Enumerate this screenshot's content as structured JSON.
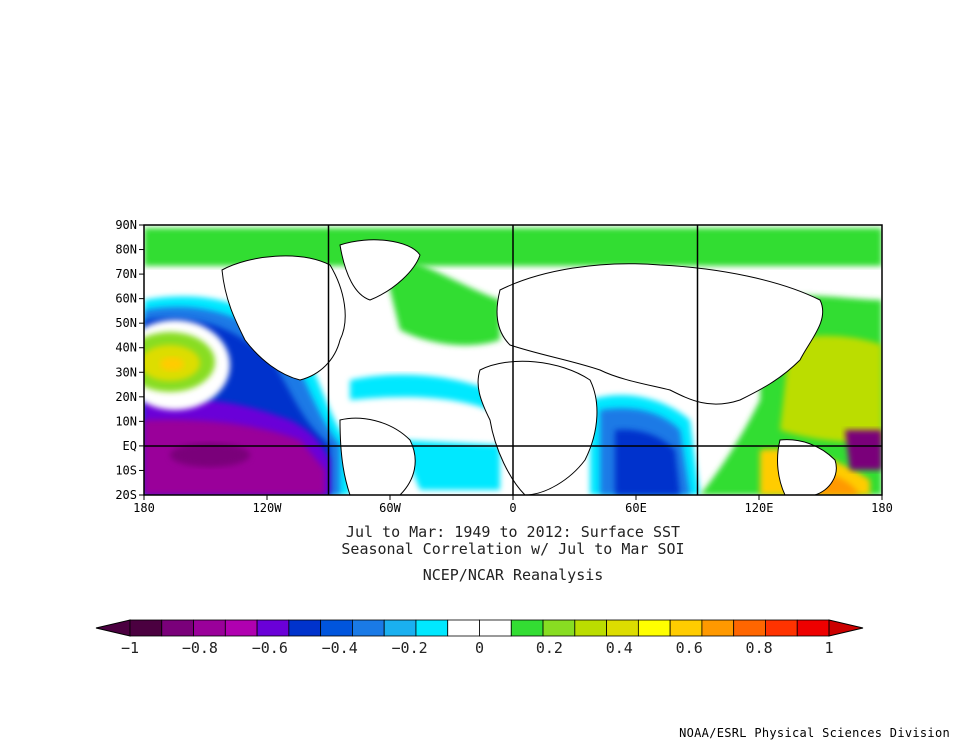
{
  "chart_data": {
    "type": "heatmap",
    "title_line1": "Jul to Mar: 1949 to 2012: Surface SST",
    "title_line2": "Seasonal Correlation w/ Jul to Mar SOI",
    "subtitle": "NCEP/NCAR Reanalysis",
    "lat_ticks": [
      "90N",
      "80N",
      "70N",
      "60N",
      "50N",
      "40N",
      "30N",
      "20N",
      "10N",
      "EQ",
      "10S",
      "20S"
    ],
    "lon_ticks": [
      "180",
      "120W",
      "60W",
      "0",
      "60E",
      "120E",
      "180"
    ],
    "lat_range": [
      -20,
      90
    ],
    "lon_range": [
      -180,
      180
    ],
    "colorbar": {
      "tick_labels": [
        "−1",
        "−0.8",
        "−0.6",
        "−0.4",
        "−0.2",
        "0",
        "0.2",
        "0.4",
        "0.6",
        "0.8",
        "1"
      ],
      "tick_values": [
        -1,
        -0.8,
        -0.6,
        -0.4,
        -0.2,
        0,
        0.2,
        0.4,
        0.6,
        0.8,
        1
      ],
      "colors": [
        "#4b0040",
        "#7a007a",
        "#9a009a",
        "#b000b0",
        "#6a00d8",
        "#0033cc",
        "#0055dd",
        "#1a7ae6",
        "#1ab0f0",
        "#00e8ff",
        "#ffffff",
        "#ffffff",
        "#33dd33",
        "#88dd22",
        "#bbdd00",
        "#dddd00",
        "#ffff00",
        "#ffcc00",
        "#ff9900",
        "#ff6600",
        "#ff3300",
        "#ee0000"
      ],
      "under_color": "#4b0040",
      "over_color": "#cc0000"
    }
  },
  "credit": "NOAA/ESRL Physical Sciences Division"
}
